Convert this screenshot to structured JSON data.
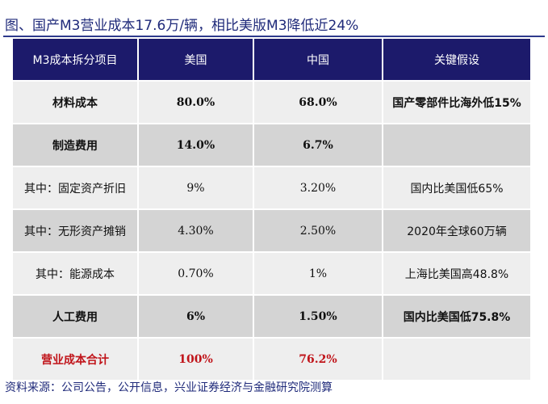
{
  "title": "图、国产M3营业成本17.6万/辆，相比美版M3降低近24%",
  "table": {
    "headers": [
      "M3成本拆分项目",
      "美国",
      "中国",
      "关键假设"
    ],
    "rows": [
      {
        "item": "材料成本",
        "us": "80.0%",
        "cn": "68.0%",
        "note": "国产零部件比海外低15%"
      },
      {
        "item": "制造费用",
        "us": "14.0%",
        "cn": "6.7%",
        "note": ""
      },
      {
        "item": "其中：固定资产折旧",
        "us": "9%",
        "cn": "3.20%",
        "note": "国内比美国低65%"
      },
      {
        "item": "其中：无形资产摊销",
        "us": "4.30%",
        "cn": "2.50%",
        "note": "2020年全球60万辆"
      },
      {
        "item": "其中：能源成本",
        "us": "0.70%",
        "cn": "1%",
        "note": "上海比美国高48.8%"
      },
      {
        "item": "人工费用",
        "us": "6%",
        "cn": "1.50%",
        "note": "国内比美国低75.8%"
      },
      {
        "item": "营业成本合计",
        "us": "100%",
        "cn": "76.2%",
        "note": ""
      }
    ]
  },
  "source": "资料来源：公司公告，公开信息，兴业证券经济与金融研究院测算",
  "colors": {
    "header_bg": "#1c1a6b",
    "title_text": "#1f2a7a",
    "total_text": "#c0141a",
    "row_light": "#eeeeee",
    "row_dark": "#d4d4d4"
  }
}
